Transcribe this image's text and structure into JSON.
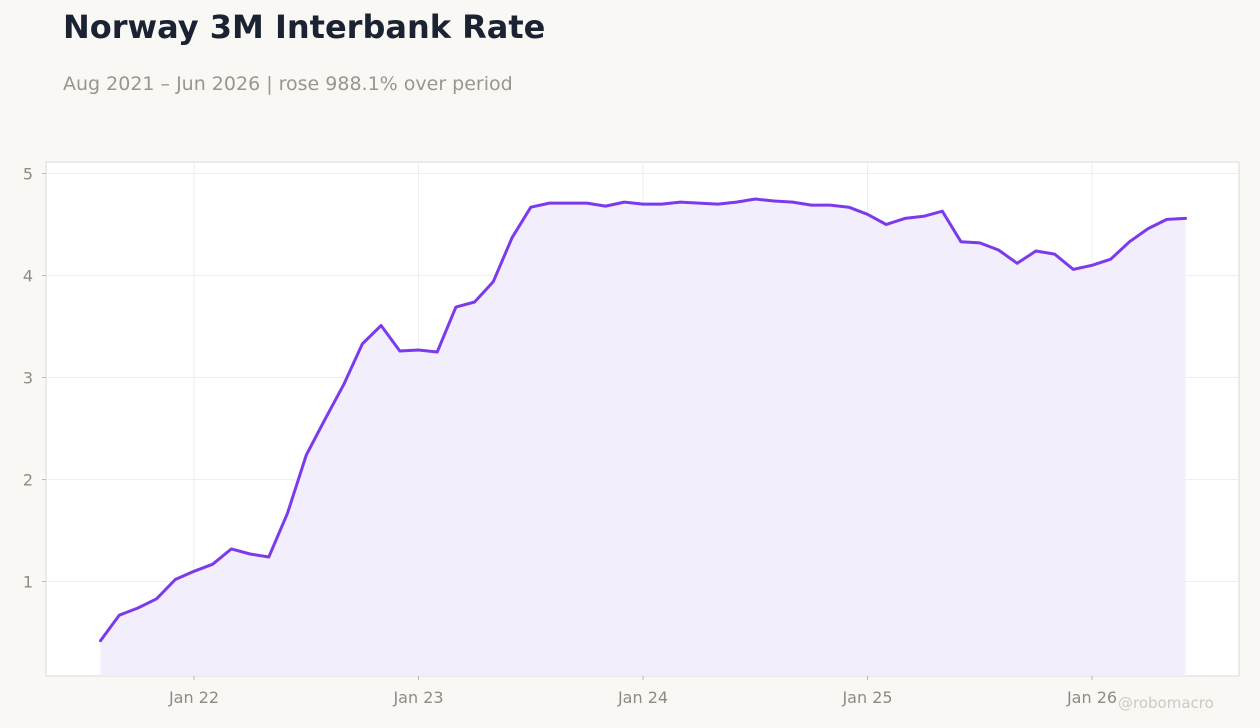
{
  "title": "Norway 3M Interbank Rate",
  "subtitle": "Aug 2021 – Jun 2026 | rose 988.1% over period",
  "watermark": "@robomacro",
  "colors": {
    "line": "#7c3aed",
    "fill": "#f1ebfc",
    "background": "#f9f8f5",
    "plot_background": "#ffffff"
  },
  "chart_data": {
    "type": "area",
    "title": "Norway 3M Interbank Rate",
    "subtitle": "Aug 2021 – Jun 2026 | rose 988.1% over period",
    "xlabel": "",
    "ylabel": "",
    "ylim": [
      0,
      5
    ],
    "xlim": [
      "2021-05",
      "2026-10"
    ],
    "grid": true,
    "legend": "none",
    "x_ticks": [
      {
        "label": "Jan 22",
        "date": "2022-01"
      },
      {
        "label": "Jan 23",
        "date": "2023-01"
      },
      {
        "label": "Jan 24",
        "date": "2024-01"
      },
      {
        "label": "Jan 25",
        "date": "2025-01"
      },
      {
        "label": "Jan 26",
        "date": "2026-01"
      }
    ],
    "y_ticks": [
      1,
      2,
      3,
      4,
      5
    ],
    "x": [
      "2021-08",
      "2021-09",
      "2021-10",
      "2021-11",
      "2021-12",
      "2022-01",
      "2022-02",
      "2022-03",
      "2022-04",
      "2022-05",
      "2022-06",
      "2022-07",
      "2022-08",
      "2022-09",
      "2022-10",
      "2022-11",
      "2022-12",
      "2023-01",
      "2023-02",
      "2023-03",
      "2023-04",
      "2023-05",
      "2023-06",
      "2023-07",
      "2023-08",
      "2023-09",
      "2023-10",
      "2023-11",
      "2023-12",
      "2024-01",
      "2024-02",
      "2024-03",
      "2024-04",
      "2024-05",
      "2024-06",
      "2024-07",
      "2024-08",
      "2024-09",
      "2024-10",
      "2024-11",
      "2024-12",
      "2025-01",
      "2025-02",
      "2025-03",
      "2025-04",
      "2025-05",
      "2025-06",
      "2025-07",
      "2025-08",
      "2025-09",
      "2025-10",
      "2025-11",
      "2025-12",
      "2026-01",
      "2026-02",
      "2026-03",
      "2026-04",
      "2026-05",
      "2026-06"
    ],
    "series": [
      {
        "values": [
          0.42,
          0.67,
          0.74,
          0.83,
          1.02,
          1.1,
          1.17,
          1.32,
          1.27,
          1.24,
          1.67,
          2.24,
          2.59,
          2.93,
          3.33,
          3.51,
          3.26,
          3.27,
          3.25,
          3.69,
          3.74,
          3.94,
          4.37,
          4.67,
          4.71,
          4.71,
          4.71,
          4.68,
          4.72,
          4.7,
          4.7,
          4.72,
          4.71,
          4.7,
          4.72,
          4.75,
          4.73,
          4.72,
          4.69,
          4.69,
          4.67,
          4.6,
          4.5,
          4.56,
          4.58,
          4.63,
          4.33,
          4.32,
          4.25,
          4.12,
          4.24,
          4.21,
          4.06,
          4.1,
          4.16,
          4.33,
          4.46,
          4.55,
          4.56
        ]
      }
    ]
  }
}
